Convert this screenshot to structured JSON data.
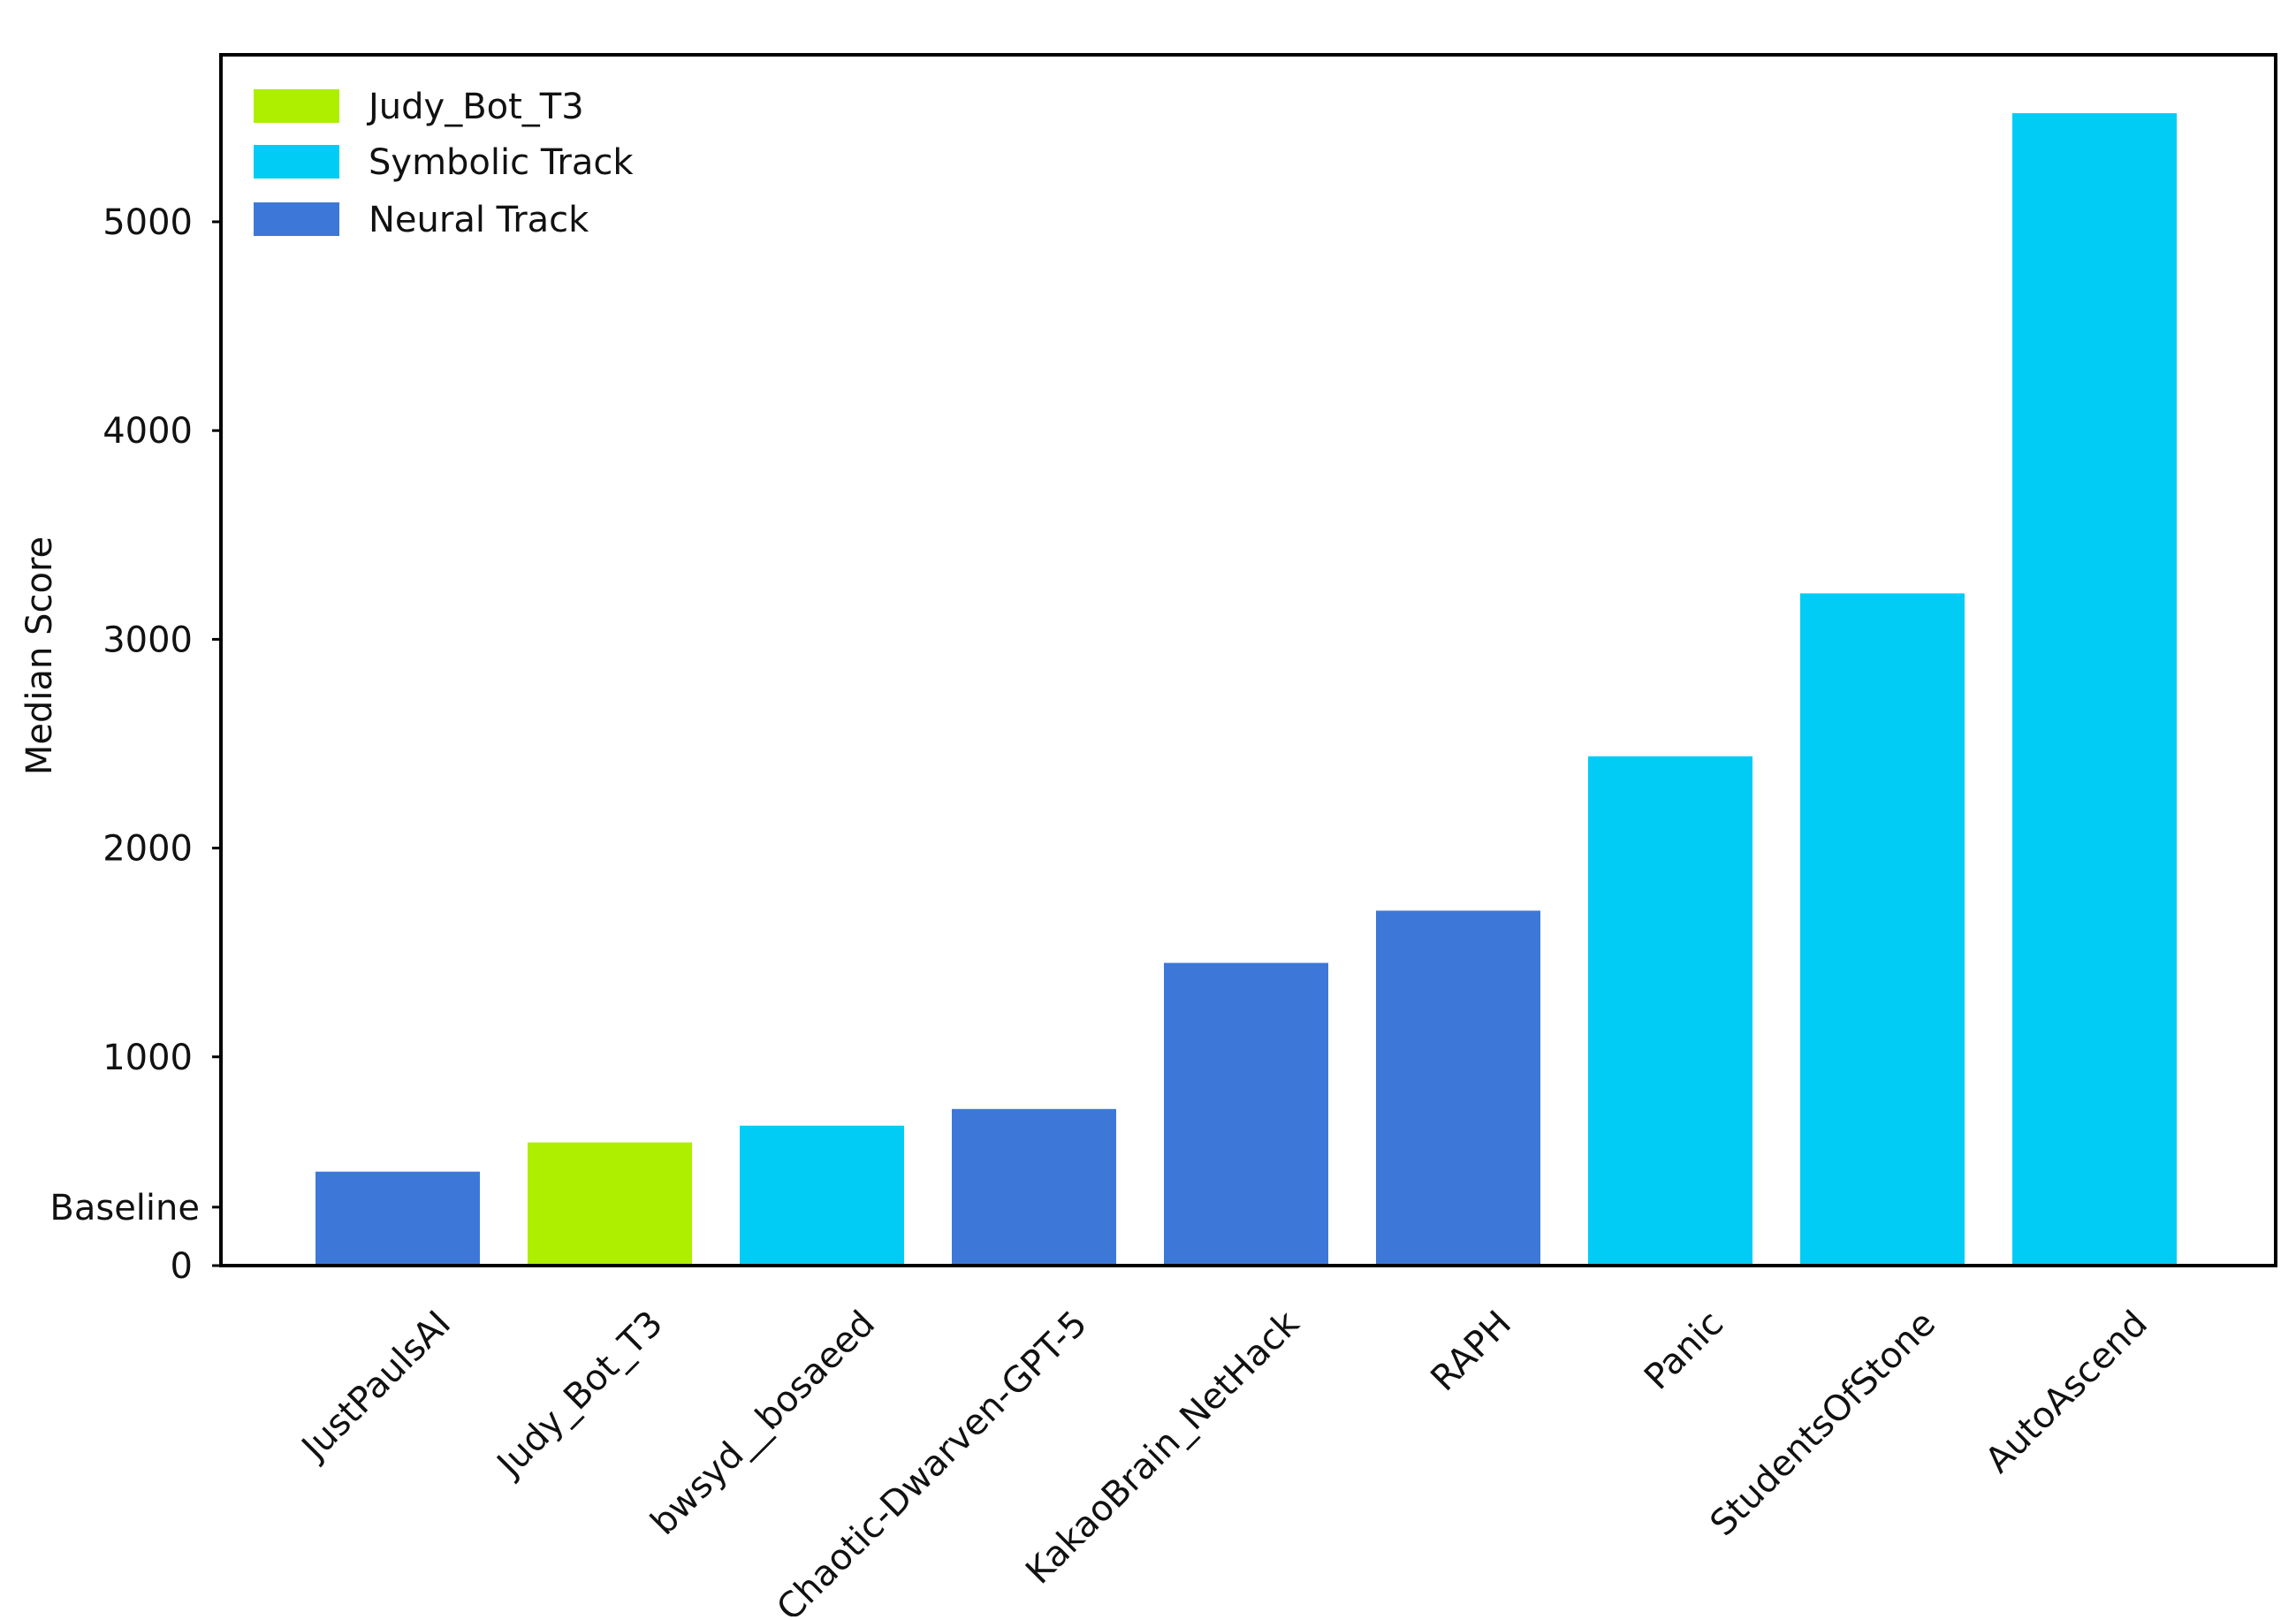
{
  "chart_data": {
    "type": "bar",
    "title": "",
    "xlabel": "",
    "ylabel": "Median Score",
    "ylim": [
      0,
      5800
    ],
    "yticks": [
      0,
      1000,
      2000,
      3000,
      4000,
      5000
    ],
    "baseline": {
      "label": "Baseline",
      "value": 280
    },
    "grid": false,
    "legend_position": "top-left",
    "legend": [
      {
        "name": "Judy_Bot_T3",
        "color": "#aeef00"
      },
      {
        "name": "Symbolic Track",
        "color": "#00ccf5"
      },
      {
        "name": "Neural Track",
        "color": "#3d78d8"
      }
    ],
    "categories": [
      "JustPaulsAI",
      "Judy_Bot_T3",
      "bwsyd__bosaeed",
      "Chaotic-Dwarven-GPT-5",
      "KakaoBrain_NetHack",
      "RAPH",
      "Panic",
      "StudentsOfStone",
      "AutoAscend"
    ],
    "values": [
      450,
      590,
      670,
      750,
      1450,
      1700,
      2440,
      3220,
      5520
    ],
    "groups": [
      "Neural Track",
      "Judy_Bot_T3",
      "Symbolic Track",
      "Neural Track",
      "Neural Track",
      "Neural Track",
      "Symbolic Track",
      "Symbolic Track",
      "Symbolic Track"
    ]
  }
}
